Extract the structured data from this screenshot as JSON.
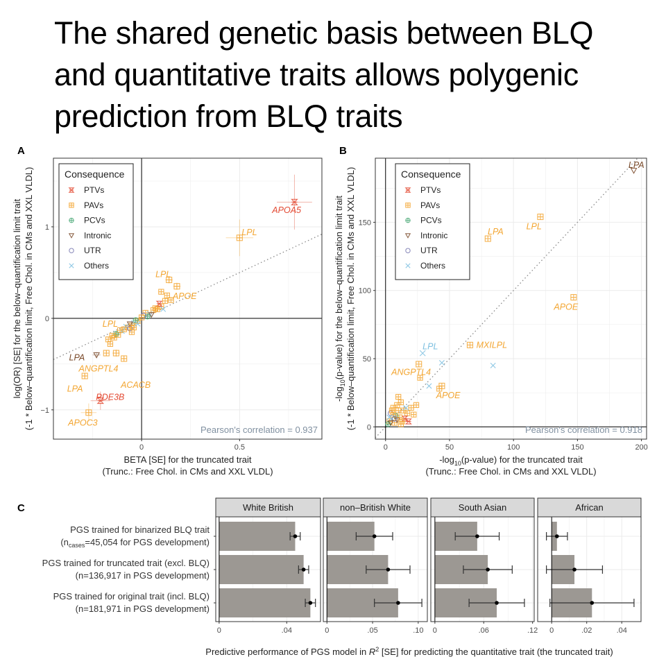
{
  "title": "The shared genetic basis between BLQ and quantitative traits allows polygenic prediction from BLQ traits",
  "colors": {
    "PTVs": "#e34a33",
    "PAVs": "#f3a632",
    "PCVs": "#4eaa79",
    "Intronic": "#7a4a2a",
    "UTR": "#7878b0",
    "Others": "#7ec0e0",
    "bar": "#9c9893",
    "strip": "#d9d9d9",
    "grid": "#ebebeb"
  },
  "legend": {
    "title": "Consequence",
    "items": [
      {
        "label": "PTVs",
        "key": "PTVs",
        "icon": "hourglass-x-icon"
      },
      {
        "label": "PAVs",
        "key": "PAVs",
        "icon": "plus-square-icon"
      },
      {
        "label": "PCVs",
        "key": "PCVs",
        "icon": "circle-plus-icon"
      },
      {
        "label": "Intronic",
        "key": "Intronic",
        "icon": "triangle-down-icon"
      },
      {
        "label": "UTR",
        "key": "UTR",
        "icon": "circle-icon"
      },
      {
        "label": "Others",
        "key": "Others",
        "icon": "x-icon"
      }
    ]
  },
  "chart_data": [
    {
      "panel": "A",
      "type": "scatter",
      "xlabel": "BETA [SE] for the truncated trait",
      "xlabel2": "(Trunc.: Free Chol. in CMs and XXL VLDL)",
      "ylabel": "log(OR) [SE] for the below–quantification limit trait",
      "ylabel2": "(-1 * Below–quantification limit, Free Chol. in CMs and XXL VLDL)",
      "xlim": [
        -0.45,
        0.92
      ],
      "ylim": [
        -1.32,
        1.75
      ],
      "xticks": [
        {
          "v": 0,
          "label": "0"
        },
        {
          "v": 0.5,
          "label": "0.5"
        }
      ],
      "yticks": [
        {
          "v": -1,
          "label": "−1"
        },
        {
          "v": 0,
          "label": "0"
        },
        {
          "v": 1,
          "label": "1"
        }
      ],
      "annotation": "Pearson's correlation = 0.937",
      "labeled_points": [
        {
          "x": 0.78,
          "y": 1.27,
          "ex": 0.09,
          "ey": 0.3,
          "cat": "PTVs",
          "label": "APOA5",
          "lx": 0.74,
          "ly": 1.18
        },
        {
          "x": 0.5,
          "y": 0.88,
          "ex": 0.07,
          "ey": 0.2,
          "cat": "PAVs",
          "label": "LPL",
          "lx": 0.55,
          "ly": 0.94
        },
        {
          "x": 0.14,
          "y": 0.42,
          "ex": 0.02,
          "ey": 0.04,
          "cat": "PAVs",
          "label": "LPL",
          "lx": 0.11,
          "ly": 0.48
        },
        {
          "x": 0.18,
          "y": 0.35,
          "ex": 0.02,
          "ey": 0.04,
          "cat": "PAVs",
          "label": "APOE",
          "lx": 0.22,
          "ly": 0.24
        },
        {
          "x": -0.13,
          "y": -0.38,
          "ex": 0.02,
          "ey": 0.04,
          "cat": "PAVs",
          "label": "LPL",
          "lx": -0.16,
          "ly": -0.06
        },
        {
          "x": -0.23,
          "y": -0.4,
          "ex": 0.02,
          "ey": 0.03,
          "cat": "Intronic",
          "label": "LPA",
          "lx": -0.33,
          "ly": -0.43
        },
        {
          "x": -0.18,
          "y": -0.38,
          "ex": 0.01,
          "ey": 0.03,
          "cat": "PAVs",
          "label": "ANGPTL4",
          "lx": -0.22,
          "ly": -0.55
        },
        {
          "x": -0.09,
          "y": -0.44,
          "ex": 0.01,
          "ey": 0.03,
          "cat": "PAVs",
          "label": "ACACB",
          "lx": -0.03,
          "ly": -0.73
        },
        {
          "x": -0.29,
          "y": -0.63,
          "ex": 0.01,
          "ey": 0.03,
          "cat": "PAVs",
          "label": "LPA",
          "lx": -0.34,
          "ly": -0.77
        },
        {
          "x": -0.21,
          "y": -0.9,
          "ex": 0.05,
          "ey": 0.1,
          "cat": "PTVs",
          "label": "PDE3B",
          "lx": -0.16,
          "ly": -0.86
        },
        {
          "x": -0.27,
          "y": -1.03,
          "ex": 0.04,
          "ey": 0.1,
          "cat": "PAVs",
          "label": "APOC3",
          "lx": -0.3,
          "ly": -1.14
        }
      ],
      "points": [
        {
          "x": 0.02,
          "y": 0.06,
          "cat": "PAVs"
        },
        {
          "x": 0.04,
          "y": 0.05,
          "cat": "Others"
        },
        {
          "x": 0.06,
          "y": 0.09,
          "cat": "PAVs"
        },
        {
          "x": 0.08,
          "y": 0.1,
          "cat": "PAVs"
        },
        {
          "x": 0.1,
          "y": 0.13,
          "cat": "PAVs"
        },
        {
          "x": 0.12,
          "y": 0.19,
          "cat": "PAVs"
        },
        {
          "x": 0.05,
          "y": 0.04,
          "cat": "Intronic"
        },
        {
          "x": 0.03,
          "y": 0.02,
          "cat": "PCVs"
        },
        {
          "x": 0.09,
          "y": 0.16,
          "cat": "PTVs"
        },
        {
          "x": 0.07,
          "y": 0.11,
          "cat": "PAVs"
        },
        {
          "x": 0.11,
          "y": 0.1,
          "cat": "Others"
        },
        {
          "x": 0.13,
          "y": 0.25,
          "cat": "PAVs"
        },
        {
          "x": 0.1,
          "y": 0.29,
          "cat": "PAVs"
        },
        {
          "x": 0.15,
          "y": 0.2,
          "cat": "PAVs"
        },
        {
          "x": 0.01,
          "y": 0.03,
          "cat": "UTR"
        },
        {
          "x": -0.02,
          "y": -0.03,
          "cat": "PAVs"
        },
        {
          "x": -0.04,
          "y": -0.05,
          "cat": "Others"
        },
        {
          "x": -0.05,
          "y": -0.08,
          "cat": "PAVs"
        },
        {
          "x": -0.06,
          "y": -0.06,
          "cat": "Intronic"
        },
        {
          "x": -0.07,
          "y": -0.1,
          "cat": "PAVs"
        },
        {
          "x": -0.08,
          "y": -0.09,
          "cat": "Others"
        },
        {
          "x": -0.03,
          "y": -0.02,
          "cat": "PCVs"
        },
        {
          "x": -0.09,
          "y": -0.12,
          "cat": "PAVs"
        },
        {
          "x": -0.1,
          "y": -0.14,
          "cat": "Others"
        },
        {
          "x": -0.11,
          "y": -0.13,
          "cat": "PAVs"
        },
        {
          "x": -0.12,
          "y": -0.18,
          "cat": "PAVs"
        },
        {
          "x": -0.13,
          "y": -0.17,
          "cat": "PCVs"
        },
        {
          "x": -0.14,
          "y": -0.21,
          "cat": "PAVs"
        },
        {
          "x": -0.15,
          "y": -0.19,
          "cat": "PAVs"
        },
        {
          "x": -0.06,
          "y": -0.11,
          "cat": "UTR"
        },
        {
          "x": -0.04,
          "y": -0.1,
          "cat": "PAVs"
        },
        {
          "x": -0.02,
          "y": -0.06,
          "cat": "Others"
        },
        {
          "x": -0.16,
          "y": -0.28,
          "cat": "PAVs"
        },
        {
          "x": -0.17,
          "y": -0.23,
          "cat": "PAVs"
        },
        {
          "x": -0.05,
          "y": -0.15,
          "cat": "PAVs"
        },
        {
          "x": 0.0,
          "y": 0.01,
          "cat": "PAVs"
        }
      ]
    },
    {
      "panel": "B",
      "type": "scatter",
      "xlabel": "-log10(p-value) for the truncated trait",
      "xlabel2": "(Trunc.: Free Chol. in CMs and XXL VLDL)",
      "ylabel": "-log10(p-value) for the below–quantification limit trait",
      "ylabel2": "(-1 * Below–quantification limit, Free Chol. in CMs and XXL VLDL)",
      "xlim": [
        -8,
        204
      ],
      "ylim": [
        -9,
        197
      ],
      "xticks": [
        {
          "v": 0,
          "label": "0"
        },
        {
          "v": 50,
          "label": "50"
        },
        {
          "v": 100,
          "label": "100"
        },
        {
          "v": 150,
          "label": "150"
        },
        {
          "v": 200,
          "label": "200"
        }
      ],
      "yticks": [
        {
          "v": 0,
          "label": "0"
        },
        {
          "v": 50,
          "label": "50"
        },
        {
          "v": 100,
          "label": "100"
        },
        {
          "v": 150,
          "label": "150"
        }
      ],
      "annotation": "Pearson's correlation = 0.918",
      "labeled_points": [
        {
          "x": 194,
          "y": 188,
          "cat": "Intronic",
          "label": "LPA",
          "lx": 196,
          "ly": 192
        },
        {
          "x": 121,
          "y": 154,
          "cat": "PAVs",
          "label": "LPL",
          "lx": 116,
          "ly": 147
        },
        {
          "x": 80,
          "y": 138,
          "cat": "PAVs",
          "label": "LPA",
          "lx": 86,
          "ly": 143
        },
        {
          "x": 147,
          "y": 95,
          "cat": "PAVs",
          "label": "APOE",
          "lx": 141,
          "ly": 88
        },
        {
          "x": 66,
          "y": 60,
          "cat": "PAVs",
          "label": "MXILPL",
          "lx": 83,
          "ly": 60
        },
        {
          "x": 29,
          "y": 54,
          "cat": "Others",
          "label": "LPL",
          "lx": 35,
          "ly": 59
        },
        {
          "x": 26,
          "y": 46,
          "cat": "PAVs",
          "label": "ANGPTL4",
          "lx": 20,
          "ly": 40
        },
        {
          "x": 44,
          "y": 30,
          "cat": "PAVs",
          "label": "APOE",
          "lx": 49,
          "ly": 23
        }
      ],
      "points": [
        {
          "x": 84,
          "y": 45,
          "cat": "Others"
        },
        {
          "x": 44,
          "y": 47,
          "cat": "Others"
        },
        {
          "x": 34,
          "y": 30,
          "cat": "Others"
        },
        {
          "x": 27,
          "y": 36,
          "cat": "PAVs"
        },
        {
          "x": 42,
          "y": 28,
          "cat": "PAVs"
        },
        {
          "x": 24,
          "y": 16,
          "cat": "PAVs"
        },
        {
          "x": 20,
          "y": 14,
          "cat": "PAVs"
        },
        {
          "x": 17,
          "y": 10,
          "cat": "PAVs"
        },
        {
          "x": 15,
          "y": 6,
          "cat": "PTVs"
        },
        {
          "x": 12,
          "y": 18,
          "cat": "PAVs"
        },
        {
          "x": 10,
          "y": 12,
          "cat": "PAVs"
        },
        {
          "x": 8,
          "y": 8,
          "cat": "PCVs"
        },
        {
          "x": 6,
          "y": 14,
          "cat": "PAVs"
        },
        {
          "x": 5,
          "y": 6,
          "cat": "Others"
        },
        {
          "x": 4,
          "y": 10,
          "cat": "UTR"
        },
        {
          "x": 3,
          "y": 4,
          "cat": "PAVs"
        },
        {
          "x": 7,
          "y": 3,
          "cat": "PAVs"
        },
        {
          "x": 9,
          "y": 5,
          "cat": "Intronic"
        },
        {
          "x": 11,
          "y": 7,
          "cat": "PAVs"
        },
        {
          "x": 13,
          "y": 4,
          "cat": "PAVs"
        },
        {
          "x": 2,
          "y": 2,
          "cat": "PCVs"
        },
        {
          "x": 6,
          "y": 9,
          "cat": "PAVs"
        },
        {
          "x": 14,
          "y": 12,
          "cat": "PAVs"
        },
        {
          "x": 18,
          "y": 4,
          "cat": "PTVs"
        },
        {
          "x": 22,
          "y": 9,
          "cat": "PAVs"
        },
        {
          "x": 3,
          "y": 7,
          "cat": "Others"
        },
        {
          "x": 9,
          "y": 16,
          "cat": "PAVs"
        },
        {
          "x": 5,
          "y": 12,
          "cat": "PAVs"
        },
        {
          "x": 7,
          "y": 6,
          "cat": "UTR"
        },
        {
          "x": 16,
          "y": 14,
          "cat": "Others"
        },
        {
          "x": 10,
          "y": 22,
          "cat": "PAVs"
        },
        {
          "x": 12,
          "y": 2,
          "cat": "PAVs"
        },
        {
          "x": 4,
          "y": 3,
          "cat": "Intronic"
        }
      ]
    },
    {
      "panel": "C",
      "type": "bar",
      "xlabel": "Predictive performance of PGS model in R^2 [SE] for predicting the quantitative trait (the truncated trait)",
      "categories": [
        {
          "line1": "PGS trained for binarized BLQ trait",
          "line2_pre": "(n",
          "line2_sub": "cases",
          "line2_post": "=45,054 for PGS development)"
        },
        {
          "line1": "PGS trained for truncated trait (excl. BLQ)",
          "line2": "(n=136,917 in PGS development)"
        },
        {
          "line1": "PGS trained for original trait (incl. BLQ)",
          "line2": "(n=181,971 in PGS development)"
        }
      ],
      "facets": [
        {
          "name": "White British",
          "xlim": [
            -0.002,
            0.06
          ],
          "ticks": [
            {
              "v": 0,
              "label": "0"
            },
            {
              "v": 0.04,
              "label": ".04"
            }
          ],
          "minor": [
            0.02
          ],
          "values": [
            0.045,
            0.05,
            0.054
          ],
          "err": [
            0.003,
            0.003,
            0.003
          ]
        },
        {
          "name": "non–British White",
          "xlim": [
            -0.004,
            0.11
          ],
          "ticks": [
            {
              "v": 0,
              "label": "0"
            },
            {
              "v": 0.05,
              "label": ".05"
            },
            {
              "v": 0.1,
              "label": ".10"
            }
          ],
          "minor": [
            0.025,
            0.075
          ],
          "values": [
            0.052,
            0.067,
            0.078
          ],
          "err": [
            0.02,
            0.024,
            0.026
          ]
        },
        {
          "name": "South Asian",
          "xlim": [
            -0.005,
            0.122
          ],
          "ticks": [
            {
              "v": 0,
              "label": "0"
            },
            {
              "v": 0.06,
              "label": ".06"
            },
            {
              "v": 0.12,
              "label": ".12"
            }
          ],
          "minor": [
            0.03,
            0.09
          ],
          "values": [
            0.052,
            0.065,
            0.076
          ],
          "err": [
            0.027,
            0.03,
            0.034
          ]
        },
        {
          "name": "African",
          "xlim": [
            -0.008,
            0.051
          ],
          "ticks": [
            {
              "v": 0,
              "label": "0"
            },
            {
              "v": 0.02,
              "label": ".02"
            },
            {
              "v": 0.04,
              "label": ".04"
            }
          ],
          "minor": [
            0.01,
            0.03
          ],
          "values": [
            0.003,
            0.013,
            0.023
          ],
          "err": [
            0.006,
            0.016,
            0.024
          ]
        }
      ]
    }
  ]
}
